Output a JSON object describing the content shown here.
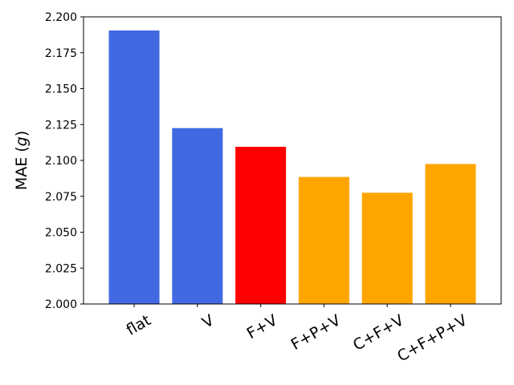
{
  "chart_data": {
    "type": "bar",
    "categories": [
      "flat",
      "V",
      "F+V",
      "F+P+V",
      "C+F+V",
      "C+F+P+V"
    ],
    "values": [
      2.1905,
      2.1225,
      2.1095,
      2.0885,
      2.0775,
      2.0975
    ],
    "colors": [
      "#4169E1",
      "#4169E1",
      "#FF0000",
      "#FFA500",
      "#FFA500",
      "#FFA500"
    ],
    "title": "",
    "xlabel": "",
    "ylabel": "MAE (",
    "ylabel_symbol": "g",
    "ylabel_close": ")",
    "ylim": [
      2.0,
      2.2
    ],
    "yticks": [
      "2.000",
      "2.025",
      "2.050",
      "2.075",
      "2.100",
      "2.125",
      "2.150",
      "2.175",
      "2.200"
    ],
    "grid": false,
    "legend": "none"
  }
}
